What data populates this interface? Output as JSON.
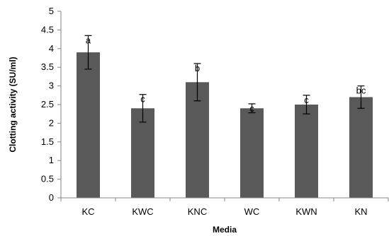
{
  "chart_data": {
    "type": "bar",
    "categories": [
      "KC",
      "KWC",
      "KNC",
      "WC",
      "KWN",
      "KN"
    ],
    "values": [
      3.9,
      2.4,
      3.1,
      2.4,
      2.5,
      2.7
    ],
    "errors": [
      0.45,
      0.37,
      0.5,
      0.12,
      0.25,
      0.3
    ],
    "significance": [
      "a",
      "c",
      "b",
      "c",
      "c",
      "bc"
    ],
    "ylim": [
      0,
      5
    ],
    "yticks": [
      "0",
      "0.5",
      "1",
      "1.5",
      "2",
      "2.5",
      "3",
      "3.5",
      "4",
      "4.5",
      "5"
    ],
    "xlabel": "Media",
    "ylabel": "Clotting activity (SU/ml)",
    "grid": false,
    "legend": false,
    "bar_color": "#595959"
  }
}
